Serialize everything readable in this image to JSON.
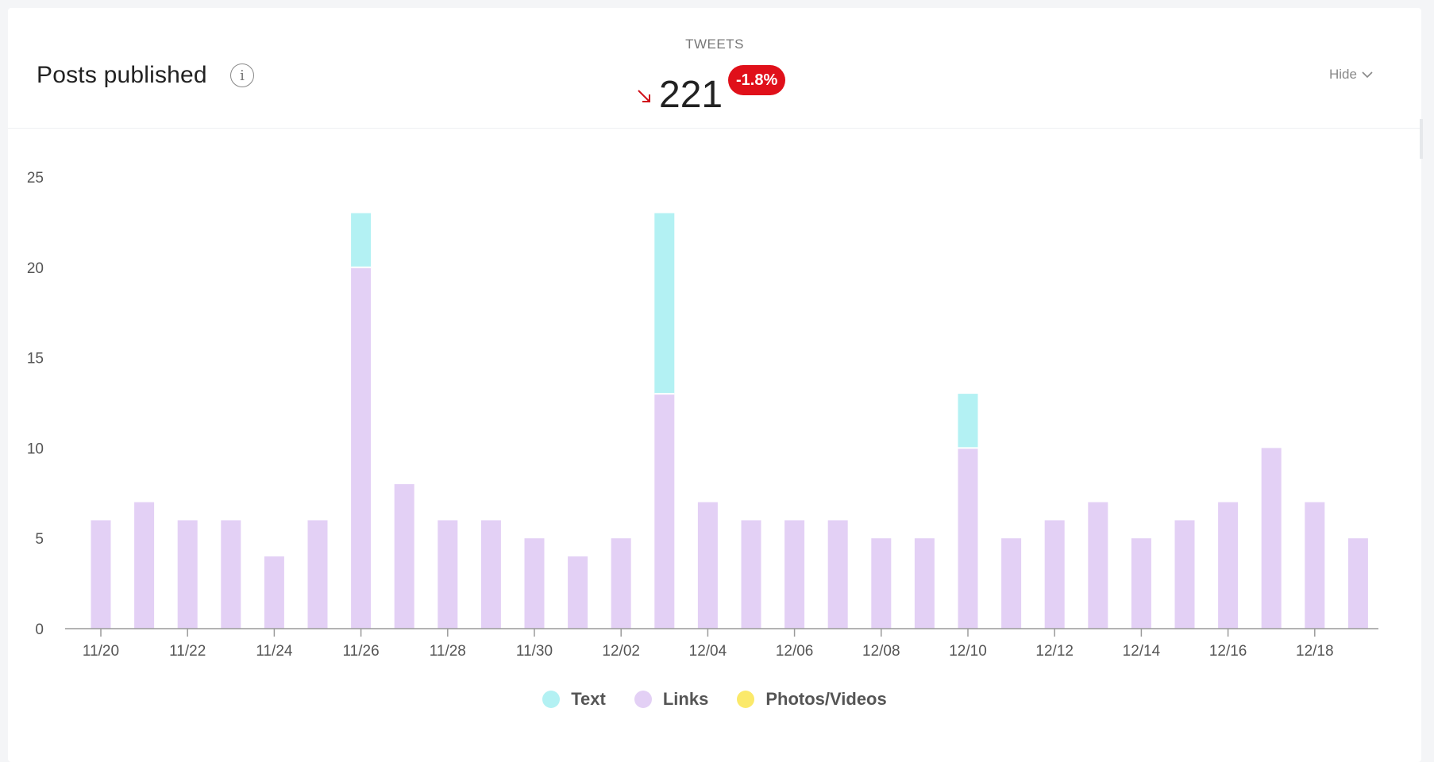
{
  "header": {
    "title": "Posts published",
    "info_icon": "info-icon",
    "metric_label": "TWEETS",
    "metric_value": "221",
    "change": "-1.8%",
    "trend_icon": "arrow-down-right-icon",
    "hide_label": "Hide"
  },
  "colors": {
    "text": "#b3f1f3",
    "links": "#e3d0f5",
    "photos_videos": "#fbe96a",
    "badge": "#e0101a",
    "trend_arrow": "#d0101a"
  },
  "legend": [
    {
      "label": "Text",
      "color": "#b3f1f3"
    },
    {
      "label": "Links",
      "color": "#e3d0f5"
    },
    {
      "label": "Photos/Videos",
      "color": "#fbe96a"
    }
  ],
  "chart_data": {
    "type": "bar",
    "stacked": true,
    "categories": [
      "11/20",
      "11/21",
      "11/22",
      "11/23",
      "11/24",
      "11/25",
      "11/26",
      "11/27",
      "11/28",
      "11/29",
      "11/30",
      "12/01",
      "12/02",
      "12/03",
      "12/04",
      "12/05",
      "12/06",
      "12/07",
      "12/08",
      "12/09",
      "12/10",
      "12/11",
      "12/12",
      "12/13",
      "12/14",
      "12/15",
      "12/16",
      "12/17",
      "12/18",
      "12/19"
    ],
    "x_tick_labels": [
      "11/20",
      "11/22",
      "11/24",
      "11/26",
      "11/28",
      "11/30",
      "12/02",
      "12/04",
      "12/06",
      "12/08",
      "12/10",
      "12/12",
      "12/14",
      "12/16",
      "12/18"
    ],
    "series": [
      {
        "name": "Links",
        "values": [
          6,
          7,
          6,
          6,
          4,
          6,
          20,
          8,
          6,
          6,
          5,
          4,
          5,
          13,
          7,
          6,
          6,
          6,
          5,
          5,
          10,
          5,
          6,
          7,
          5,
          6,
          7,
          10,
          7,
          5
        ]
      },
      {
        "name": "Text",
        "values": [
          0,
          0,
          0,
          0,
          0,
          0,
          3,
          0,
          0,
          0,
          0,
          0,
          0,
          10,
          0,
          0,
          0,
          0,
          0,
          0,
          3,
          0,
          0,
          0,
          0,
          0,
          0,
          0,
          0,
          0
        ]
      },
      {
        "name": "Photos/Videos",
        "values": [
          0,
          0,
          0,
          0,
          0,
          0,
          0,
          0,
          0,
          0,
          0,
          0,
          0,
          0,
          0,
          0,
          0,
          0,
          0,
          0,
          0,
          0,
          0,
          0,
          0,
          0,
          0,
          0,
          0,
          0
        ]
      }
    ],
    "ylim": [
      0,
      25
    ],
    "y_ticks": [
      0,
      5,
      10,
      15,
      20,
      25
    ],
    "grid": false,
    "legend_position": "bottom"
  }
}
